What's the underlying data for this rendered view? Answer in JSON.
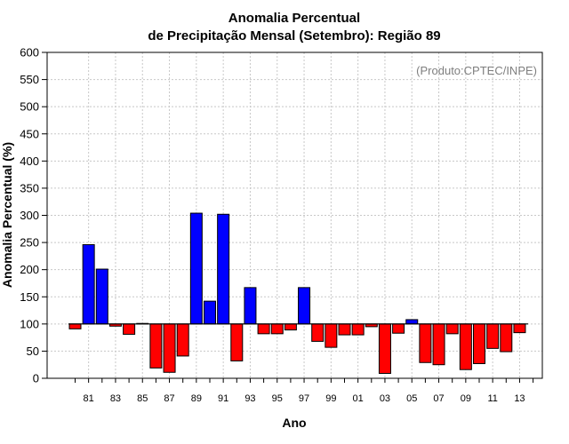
{
  "chart_data": {
    "type": "bar",
    "title_line1": "Anomalia Percentual",
    "title_line2": "de Precipitação Mensal (Setembro): Região 89",
    "xlabel": "Ano",
    "ylabel": "Anomalia Percentual (%)",
    "annotation": "(Produto:CPTEC/INPE)",
    "ylim": [
      0,
      600
    ],
    "yticks": [
      0,
      50,
      100,
      150,
      200,
      250,
      300,
      350,
      400,
      450,
      500,
      550,
      600
    ],
    "baseline": 100,
    "grid": true,
    "colors": {
      "above": "#0000ff",
      "below": "#ff0000",
      "baseline": "#000000",
      "grid": "#c8c8c8"
    },
    "categories": [
      "80",
      "81",
      "82",
      "83",
      "84",
      "85",
      "86",
      "87",
      "88",
      "89",
      "90",
      "91",
      "92",
      "93",
      "94",
      "95",
      "96",
      "97",
      "98",
      "99",
      "00",
      "01",
      "02",
      "03",
      "04",
      "05",
      "06",
      "07",
      "08",
      "09",
      "10",
      "11",
      "12",
      "13",
      "14"
    ],
    "xtick_labels": [
      "81",
      "83",
      "85",
      "87",
      "89",
      "91",
      "93",
      "95",
      "97",
      "99",
      "01",
      "03",
      "05",
      "07",
      "09",
      "11",
      "13"
    ],
    "values": [
      91,
      246,
      201,
      96,
      81,
      101,
      19,
      11,
      41,
      304,
      142,
      302,
      32,
      167,
      82,
      82,
      89,
      167,
      68,
      57,
      80,
      80,
      95,
      9,
      83,
      108,
      29,
      25,
      82,
      16,
      27,
      55,
      49,
      84,
      100
    ]
  }
}
